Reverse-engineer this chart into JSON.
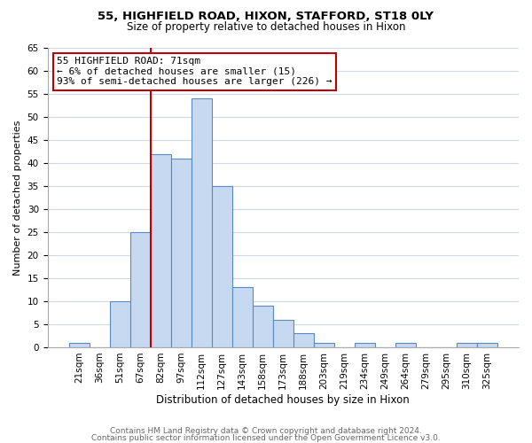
{
  "title1": "55, HIGHFIELD ROAD, HIXON, STAFFORD, ST18 0LY",
  "title2": "Size of property relative to detached houses in Hixon",
  "xlabel": "Distribution of detached houses by size in Hixon",
  "ylabel": "Number of detached properties",
  "footer1": "Contains HM Land Registry data © Crown copyright and database right 2024.",
  "footer2": "Contains public sector information licensed under the Open Government Licence v3.0.",
  "bin_labels": [
    "21sqm",
    "36sqm",
    "51sqm",
    "67sqm",
    "82sqm",
    "97sqm",
    "112sqm",
    "127sqm",
    "143sqm",
    "158sqm",
    "173sqm",
    "188sqm",
    "203sqm",
    "219sqm",
    "234sqm",
    "249sqm",
    "264sqm",
    "279sqm",
    "295sqm",
    "310sqm",
    "325sqm"
  ],
  "bar_values": [
    1,
    0,
    10,
    25,
    42,
    41,
    54,
    35,
    13,
    9,
    6,
    3,
    1,
    0,
    1,
    0,
    1,
    0,
    0,
    1,
    1
  ],
  "bar_color": "#c6d9f0",
  "bar_edge_color": "#5a8ac6",
  "annotation_text_line1": "55 HIGHFIELD ROAD: 71sqm",
  "annotation_text_line2": "← 6% of detached houses are smaller (15)",
  "annotation_text_line3": "93% of semi-detached houses are larger (226) →",
  "annotation_box_edge": "#c00000",
  "vline_x": 3.5,
  "ylim": [
    0,
    65
  ],
  "yticks": [
    0,
    5,
    10,
    15,
    20,
    25,
    30,
    35,
    40,
    45,
    50,
    55,
    60,
    65
  ],
  "background_color": "#ffffff",
  "grid_color": "#d0d8e8",
  "title1_fontsize": 9.5,
  "title2_fontsize": 8.5,
  "xlabel_fontsize": 8.5,
  "ylabel_fontsize": 8,
  "tick_fontsize": 7.5,
  "annotation_fontsize": 8,
  "footer_fontsize": 6.5
}
